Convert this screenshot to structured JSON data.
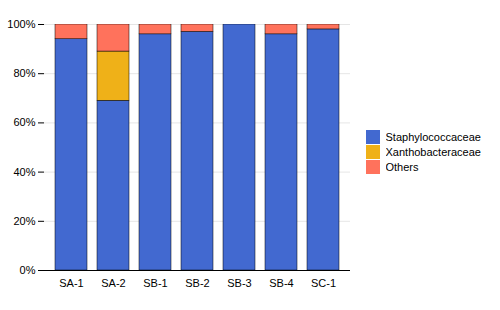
{
  "chart_data": {
    "type": "bar",
    "categories": [
      "SA-1",
      "SA-2",
      "SB-1",
      "SB-2",
      "SB-3",
      "SB-4",
      "SC-1"
    ],
    "series": [
      {
        "name": "Staphylococcaceae",
        "values": [
          94,
          69,
          96,
          97,
          100,
          96,
          98
        ]
      },
      {
        "name": "Xanthobacteraceae",
        "values": [
          0,
          20,
          0,
          0,
          0,
          0,
          0
        ]
      },
      {
        "name": "Others",
        "values": [
          6,
          11,
          4,
          3,
          0,
          4,
          2
        ]
      }
    ],
    "stacked": true,
    "ylim": [
      0,
      100
    ],
    "yticks": [
      {
        "value": 0,
        "label": "0%"
      },
      {
        "value": 20,
        "label": "20%"
      },
      {
        "value": 40,
        "label": "40%"
      },
      {
        "value": 60,
        "label": "60%"
      },
      {
        "value": 80,
        "label": "80%"
      },
      {
        "value": 100,
        "label": "100%"
      }
    ],
    "grid": true,
    "legend": "right"
  }
}
